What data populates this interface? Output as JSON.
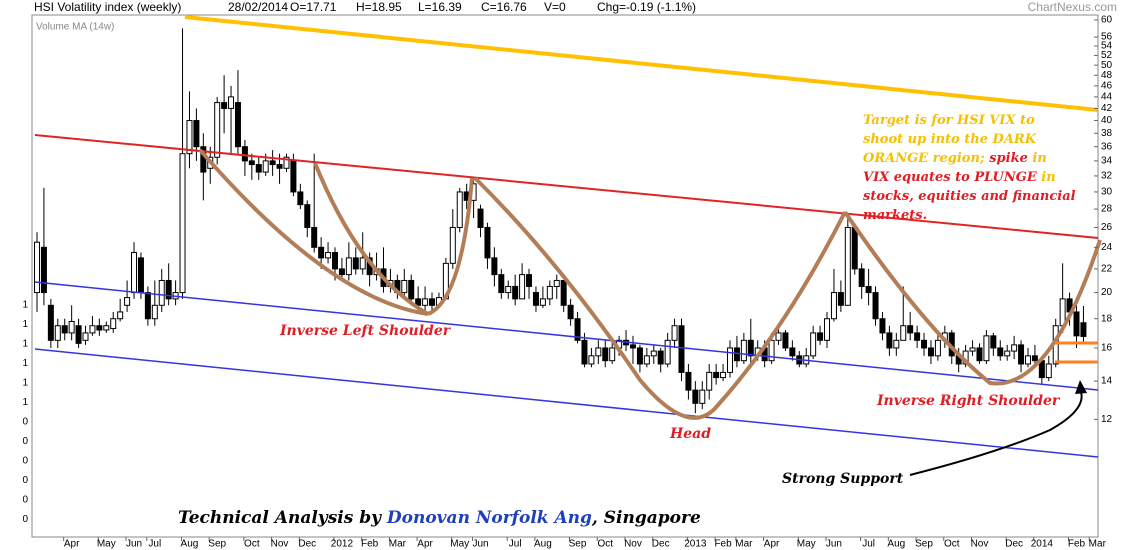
{
  "chart_data": {
    "type": "candlestick",
    "title": "HSI Volatility index (weekly)",
    "header_fields": [
      "28/02/2014",
      "O=17.71",
      "H=18.95",
      "L=16.39",
      "C=16.76",
      "V=0",
      "Chg=-0.19 (-1.1%)"
    ],
    "source": "ChartNexus.com",
    "indicator": "Volume MA (14w)",
    "volume_axis_labels": [
      "1",
      "1",
      "1",
      "1",
      "1",
      "1",
      "0",
      "0",
      "0",
      "0",
      "0",
      "0"
    ],
    "log_scale": true,
    "grid": false,
    "up_color": "#ffffff",
    "down_color": "#000000",
    "ylim": [
      7.47,
      61.2
    ],
    "yticks": [
      12,
      14,
      16,
      18,
      20,
      22,
      24,
      26,
      28,
      30,
      32,
      34,
      36,
      38,
      40,
      42,
      44,
      46,
      48,
      50,
      52,
      54,
      56,
      60
    ],
    "categories": [
      null,
      null,
      null,
      null,
      null,
      "Apr",
      null,
      null,
      null,
      null,
      "May",
      null,
      null,
      null,
      "Jun",
      null,
      null,
      "Jul",
      null,
      null,
      null,
      null,
      "Aug",
      null,
      null,
      null,
      "Sep",
      null,
      null,
      null,
      null,
      "Oct",
      null,
      null,
      null,
      "Nov",
      null,
      null,
      null,
      "Dec",
      null,
      null,
      null,
      null,
      "2012",
      null,
      null,
      null,
      "Feb",
      null,
      null,
      null,
      "Mar",
      null,
      null,
      null,
      "Apr",
      null,
      null,
      null,
      null,
      "May",
      null,
      null,
      "Jun",
      null,
      null,
      null,
      null,
      "Jul",
      null,
      null,
      null,
      "Aug",
      null,
      null,
      null,
      null,
      "Sep",
      null,
      null,
      null,
      "Oct",
      null,
      null,
      null,
      "Nov",
      null,
      null,
      null,
      "Dec",
      null,
      null,
      null,
      null,
      "2013",
      null,
      null,
      null,
      "Feb",
      null,
      null,
      "Mar",
      null,
      null,
      null,
      "Apr",
      null,
      null,
      null,
      null,
      "May",
      null,
      null,
      null,
      "Jun",
      null,
      null,
      null,
      null,
      "Jul",
      null,
      null,
      null,
      "Aug",
      null,
      null,
      null,
      "Sep",
      null,
      null,
      null,
      "Oct",
      null,
      null,
      null,
      "Nov",
      null,
      null,
      null,
      null,
      "Dec",
      null,
      null,
      null,
      "2014",
      null,
      null,
      null,
      null,
      "Feb",
      null,
      null,
      "Mar"
    ],
    "open": [
      20,
      24,
      19,
      16.5,
      17.5,
      17,
      17.5,
      16.5,
      17,
      17.5,
      17.2,
      17.3,
      18,
      19,
      20,
      23,
      20,
      18,
      19,
      21,
      19.5,
      20,
      35,
      40,
      36,
      33,
      34.5,
      43,
      42,
      43,
      36,
      34,
      33.5,
      32.5,
      34,
      33.5,
      33,
      34,
      30,
      28.5,
      26,
      24,
      23,
      23.5,
      22,
      21.5,
      23,
      22,
      23,
      21.5,
      22,
      20.5,
      21,
      20,
      21,
      19.5,
      19,
      19.5,
      19,
      19.5,
      22.5,
      26,
      30,
      29,
      28,
      26,
      23,
      21.5,
      20,
      20.5,
      19.5,
      21.5,
      20,
      19,
      19.5,
      20.5,
      21,
      19,
      18,
      16.5,
      15,
      15.5,
      16,
      15.2,
      16,
      16.5,
      16.2,
      16,
      15,
      15.5,
      15.8,
      15,
      16.5,
      17.5,
      14.5,
      13.5,
      12.8,
      13.5,
      14.5,
      14.2,
      14.5,
      16,
      15.2,
      16.5,
      15.5,
      16,
      15.2,
      16.5,
      17,
      16,
      15.5,
      15,
      15.5,
      17,
      16.5,
      18,
      20,
      19,
      26,
      22,
      20.5,
      20,
      18,
      17,
      16,
      16.5,
      17.5,
      17,
      16.5,
      16,
      15.5,
      16.5,
      17,
      15.5,
      15,
      15.8,
      16,
      15.2,
      16.8,
      16,
      15.5,
      15.8,
      16.2,
      15,
      15.5,
      15.2,
      14.2,
      15,
      17.5,
      19.5,
      18.5,
      17.71,
      null,
      null
    ],
    "high": [
      25.5,
      30.5,
      19.5,
      18,
      18,
      19,
      18,
      17.5,
      18.2,
      18,
      17.8,
      18.5,
      19.5,
      21,
      24.5,
      23.5,
      20.5,
      21,
      22,
      22.5,
      21,
      58,
      45,
      42,
      38,
      36,
      44,
      48,
      46,
      49,
      37,
      35,
      34.5,
      35,
      35.5,
      35,
      35,
      35,
      31,
      29,
      35,
      25,
      24.5,
      24,
      23,
      24.5,
      24,
      25.5,
      23.5,
      23.5,
      24,
      22,
      21.5,
      22,
      21.5,
      20.5,
      20.5,
      20,
      20,
      23,
      28,
      30.5,
      31,
      31.5,
      28.5,
      26.5,
      24,
      22,
      21,
      21.5,
      22.5,
      22,
      20.5,
      20.5,
      21,
      21.5,
      21,
      19.5,
      18.5,
      17,
      16,
      16.5,
      16.5,
      16.5,
      16.8,
      17.2,
      16.8,
      16.2,
      16,
      16.2,
      16,
      17,
      18,
      18,
      15,
      14,
      14,
      15,
      15,
      15,
      16.5,
      16.8,
      17,
      18,
      16.5,
      16.5,
      17,
      17.5,
      17.2,
      16.5,
      15.8,
      16,
      17.5,
      17.5,
      18.5,
      22,
      21,
      27,
      26,
      22.5,
      22,
      20.5,
      18.5,
      17.5,
      17,
      20.5,
      18.5,
      17.5,
      17,
      16.5,
      17,
      17.5,
      17.2,
      16,
      16.2,
      16.5,
      16.3,
      17.2,
      17,
      16.5,
      16.2,
      16.8,
      16.5,
      16,
      16.2,
      15.5,
      15.5,
      18,
      22.5,
      20,
      19,
      18.95,
      null,
      null
    ],
    "low": [
      18.5,
      19,
      16,
      16,
      16.5,
      16.5,
      16,
      16.2,
      16.8,
      16.8,
      17,
      17,
      17.8,
      18.5,
      19.5,
      19.5,
      17.5,
      17.5,
      18.5,
      19,
      19,
      19.5,
      33,
      34,
      29,
      31,
      33.5,
      38,
      35,
      35,
      32,
      31.5,
      31.5,
      32,
      32,
      31,
      32.5,
      29.5,
      28,
      25,
      23.5,
      22,
      22.5,
      21,
      21,
      21,
      21.5,
      21.5,
      20.5,
      21,
      20,
      20,
      19.5,
      19.5,
      19,
      18.5,
      18.5,
      18.5,
      18.8,
      19.5,
      22,
      25.5,
      28,
      27,
      25,
      22,
      20.5,
      19.5,
      19.5,
      19,
      19.5,
      19.5,
      18.5,
      18.8,
      19,
      19.5,
      18.5,
      17.5,
      16.3,
      14.8,
      14.8,
      15,
      14.8,
      15,
      15.5,
      15.8,
      15,
      14.5,
      14.8,
      15,
      14.5,
      14.8,
      16,
      14,
      13,
      12.3,
      12.5,
      13,
      13.8,
      14,
      14.2,
      14.8,
      15,
      15,
      15.2,
      14.8,
      15,
      16.2,
      15.8,
      15.2,
      14.8,
      14.8,
      15.3,
      16.2,
      16,
      17.8,
      18.5,
      19,
      21.5,
      19.5,
      19,
      17.5,
      16.5,
      15.5,
      15.5,
      16.5,
      16.5,
      16,
      15.5,
      15,
      15.2,
      16,
      15,
      14.5,
      14.8,
      15.5,
      15,
      15,
      15.5,
      15.2,
      15.2,
      15.3,
      14.5,
      14.8,
      14.8,
      13.8,
      14,
      14.8,
      17,
      17.5,
      16,
      16.39,
      null,
      null
    ],
    "close": [
      24.5,
      20,
      16.5,
      17.5,
      17,
      17.8,
      16.3,
      17,
      17.5,
      17.2,
      17.5,
      18,
      18.5,
      19.6,
      23.5,
      20,
      18,
      19,
      21,
      19.5,
      20,
      35,
      40,
      36,
      32.5,
      34.5,
      43,
      42,
      44,
      36,
      34,
      33.5,
      32.5,
      34,
      33.5,
      33,
      34.5,
      30,
      28.5,
      26,
      24,
      23,
      23.5,
      22,
      21.5,
      23,
      22,
      23,
      21.5,
      22,
      20.5,
      21,
      20,
      21,
      19.5,
      19,
      19.5,
      19,
      19.6,
      22.5,
      26,
      30,
      29,
      31,
      26,
      23,
      21.5,
      20,
      20.5,
      19.5,
      21.5,
      20.5,
      19,
      19.5,
      20.5,
      21,
      19,
      18,
      16.5,
      15,
      15.5,
      16,
      15.2,
      16,
      16.5,
      16.2,
      16,
      15,
      15.5,
      15.8,
      15,
      16.5,
      17.5,
      14.5,
      13.5,
      12.8,
      13.5,
      14.5,
      14.2,
      14.5,
      16,
      15.2,
      16.5,
      15.5,
      16,
      15.2,
      16.5,
      17,
      16,
      15.5,
      15,
      15.5,
      17,
      16.5,
      18,
      20,
      19,
      26,
      22,
      20.5,
      20,
      18,
      17,
      16,
      16.5,
      17.5,
      17,
      16.5,
      16,
      15.5,
      16.5,
      17,
      15.5,
      15,
      15.8,
      16,
      15.2,
      16.8,
      16,
      15.5,
      15.8,
      16.2,
      15,
      15.5,
      15.2,
      14.2,
      15,
      17.5,
      19.5,
      18.5,
      16.8,
      16.76,
      null,
      null
    ],
    "annotations": {
      "target_note": [
        [
          {
            "text": "Target is for HSI VIX to",
            "color": "#f5c000"
          }
        ],
        [
          {
            "text": "shoot up into the DARK",
            "color": "#f5c000"
          }
        ],
        [
          {
            "text": "ORANGE region; ",
            "color": "#f5c000"
          },
          {
            "text": "spike",
            "color": "#e01c24"
          },
          {
            "text": " in",
            "color": "#f5c000"
          }
        ],
        [
          {
            "text": "VIX equates to PLUNGE",
            "color": "#e01c24"
          },
          {
            "text": " in",
            "color": "#f5c000"
          }
        ],
        [
          {
            "text": "stocks, equities and financial",
            "color": "#e01c24"
          }
        ],
        [
          {
            "text": "markets.",
            "color": "#e01c24"
          }
        ]
      ],
      "left_shoulder": "Inverse Left Shoulder",
      "head": "Head",
      "right_shoulder": "Inverse Right Shoulder",
      "support": "Strong Support",
      "credit": [
        {
          "text": "Technical Analysis by ",
          "color": "#000000"
        },
        {
          "text": "Donovan Norfolk Ang",
          "color": "#1f3fbf"
        },
        {
          "text": ", Singapore",
          "color": "#000000"
        }
      ]
    }
  }
}
